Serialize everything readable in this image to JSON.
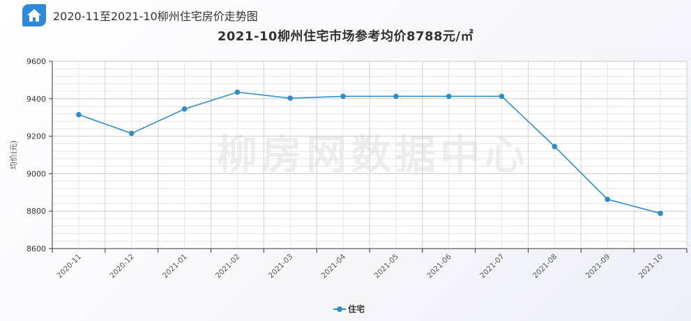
{
  "header": {
    "title": "2020-11至2021-10柳州住宅房价走势图",
    "icon": "home-icon"
  },
  "chart_data": {
    "type": "line",
    "title": "2021-10柳州住宅市场参考均价8788元/㎡",
    "ylabel": "均价(元)",
    "xlabel": "",
    "ylim": [
      8600,
      9600
    ],
    "yticks": [
      8600,
      8800,
      9000,
      9200,
      9400,
      9600
    ],
    "categories": [
      "2020-11",
      "2020-12",
      "2021-01",
      "2021-02",
      "2021-03",
      "2021-04",
      "2021-05",
      "2021-06",
      "2021-07",
      "2021-08",
      "2021-09",
      "2021-10"
    ],
    "series": [
      {
        "name": "住宅",
        "color": "#2f8cc4",
        "values": [
          9315,
          9215,
          9345,
          9435,
          9403,
          9413,
          9413,
          9413,
          9413,
          9145,
          8863,
          8788
        ]
      }
    ],
    "grid": true,
    "legend": "bottom-center",
    "watermark": "柳房网数据中心"
  }
}
